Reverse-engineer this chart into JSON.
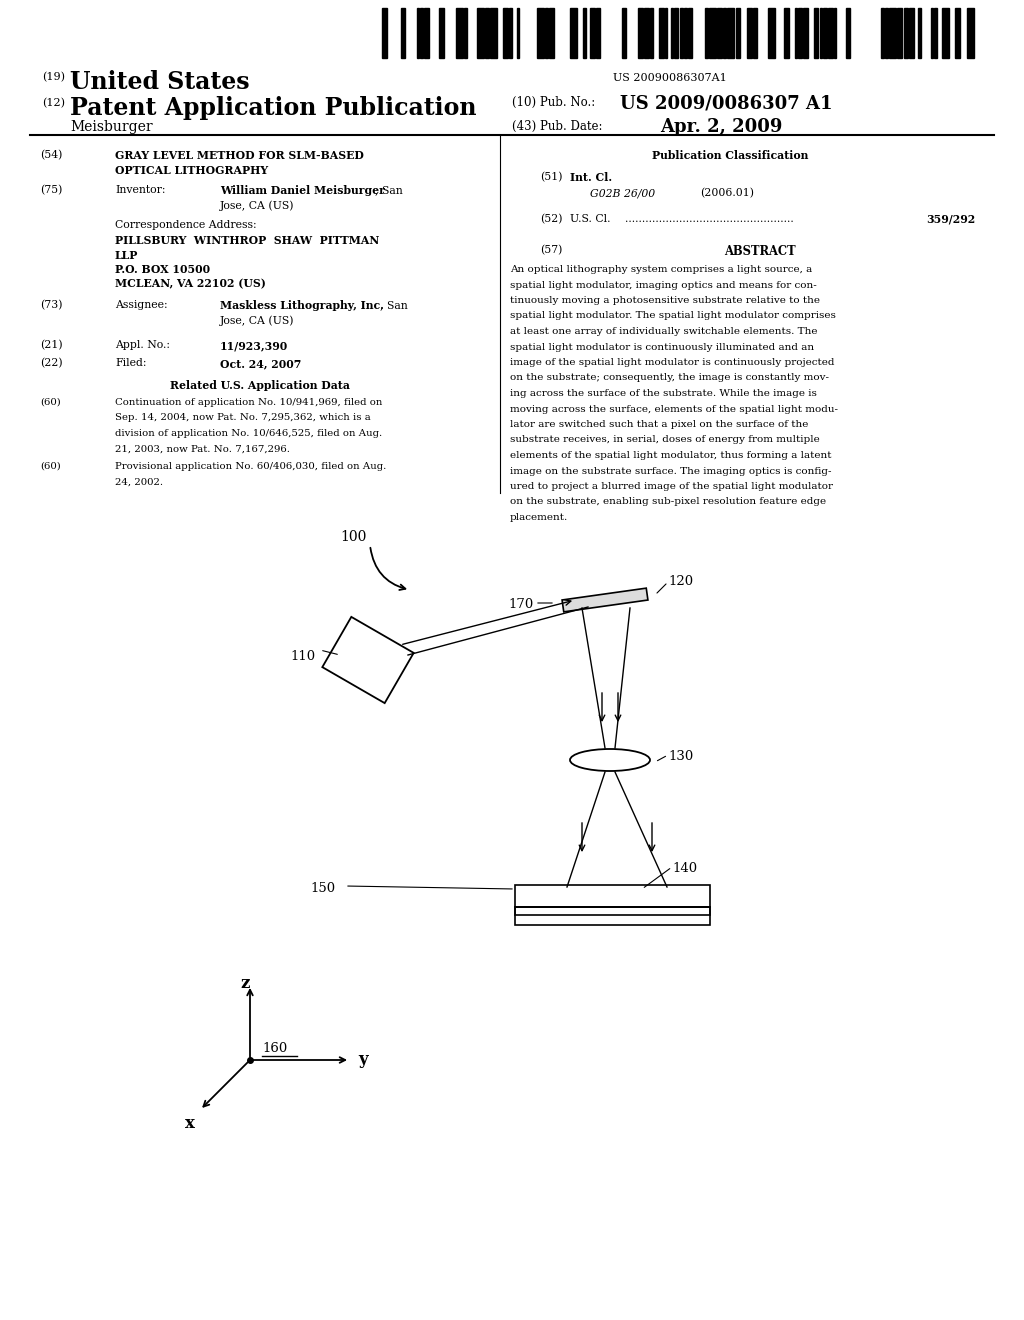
{
  "bg_color": "#ffffff",
  "barcode_text": "US 20090086307A1",
  "field54_num": "(54)",
  "field54_title_line1": "GRAY LEVEL METHOD FOR SLM-BASED",
  "field54_title_line2": "OPTICAL LITHOGRAPHY",
  "field75_num": "(75)",
  "field75_label": "Inventor:",
  "field75_value_bold": "William Daniel Meisburger",
  "field75_value_rest": ", San\nJose, CA (US)",
  "corr_label": "Correspondence Address:",
  "corr_line1": "PILLSBURY  WINTHROP  SHAW  PITTMAN",
  "corr_line2": "LLP",
  "corr_line3": "P.O. BOX 10500",
  "corr_line4": "MCLEAN, VA 22102 (US)",
  "field73_num": "(73)",
  "field73_label": "Assignee:",
  "field73_value_bold": "Maskless Lithography, Inc.",
  "field73_value_rest": ", San\nJose, CA (US)",
  "field21_num": "(21)",
  "field21_label": "Appl. No.:",
  "field21_value": "11/923,390",
  "field22_num": "(22)",
  "field22_label": "Filed:",
  "field22_value": "Oct. 24, 2007",
  "related_title": "Related U.S. Application Data",
  "field60a_num": "(60)",
  "field60a_lines": [
    "Continuation of application No. 10/941,969, filed on",
    "Sep. 14, 2004, now Pat. No. 7,295,362, which is a",
    "division of application No. 10/646,525, filed on Aug.",
    "21, 2003, now Pat. No. 7,167,296."
  ],
  "field60b_num": "(60)",
  "field60b_lines": [
    "Provisional application No. 60/406,030, filed on Aug.",
    "24, 2002."
  ],
  "pub_class_title": "Publication Classification",
  "field51_num": "(51)",
  "field51_label": "Int. Cl.",
  "field51_code": "G02B 26/00",
  "field51_year": "(2006.01)",
  "field52_num": "(52)",
  "field52_label": "U.S. Cl.",
  "field52_value": "359/292",
  "abstract_num": "(57)",
  "abstract_title": "ABSTRACT",
  "abstract_lines": [
    "An optical lithography system comprises a light source, a",
    "spatial light modulator, imaging optics and means for con-",
    "tinuously moving a photosensitive substrate relative to the",
    "spatial light modulator. The spatial light modulator comprises",
    "at least one array of individually switchable elements. The",
    "spatial light modulator is continuously illuminated and an",
    "image of the spatial light modulator is continuously projected",
    "on the substrate; consequently, the image is constantly mov-",
    "ing across the surface of the substrate. While the image is",
    "moving across the surface, elements of the spatial light modu-",
    "lator are switched such that a pixel on the surface of the",
    "substrate receives, in serial, doses of energy from multiple",
    "elements of the spatial light modulator, thus forming a latent",
    "image on the substrate surface. The imaging optics is config-",
    "ured to project a blurred image of the spatial light modulator",
    "on the substrate, enabling sub-pixel resolution feature edge",
    "placement."
  ]
}
